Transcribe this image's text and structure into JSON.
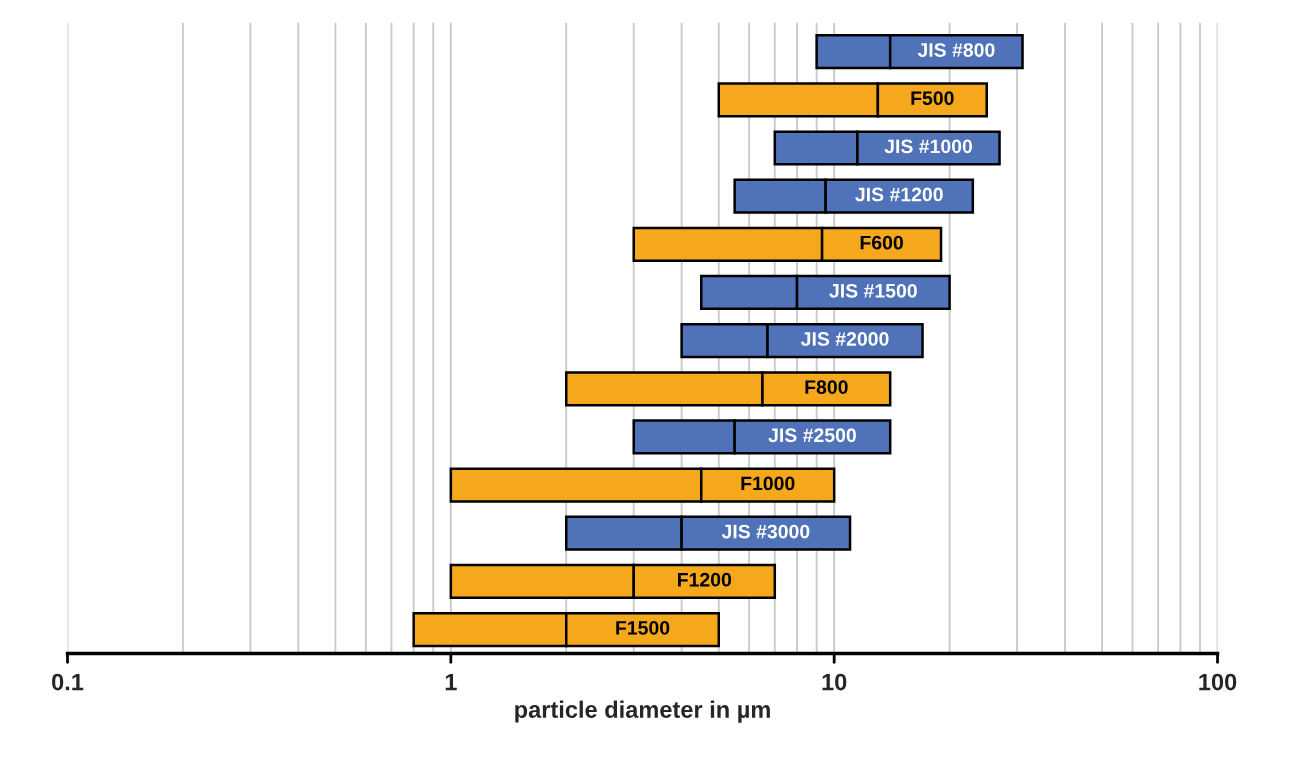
{
  "chart_data": {
    "type": "bar",
    "orientation": "horizontal",
    "log": "x",
    "xlabel": "particle diameter in µm",
    "categories": [
      "JIS #800",
      "F500",
      "JIS #1000",
      "JIS #1200",
      "F600",
      "JIS #1500",
      "JIS #2000",
      "F800",
      "JIS #2500",
      "F1000",
      "JIS #3000",
      "F1200",
      "F1500"
    ],
    "series": [
      {
        "colors": [
          "#4f72b8",
          "#f5a81c",
          "#4f72b8",
          "#4f72b8",
          "#f5a81c",
          "#4f72b8",
          "#4f72b8",
          "#f5a81c",
          "#4f72b8",
          "#f5a81c",
          "#4f72b8",
          "#f5a81c",
          "#f5a81c"
        ],
        "base": [
          9,
          5,
          7,
          5.5,
          3,
          4.5,
          4,
          2,
          3,
          1,
          2,
          1,
          0.8
        ],
        "values": [
          5,
          8,
          4.5,
          4,
          6.3,
          3.5,
          2.7,
          4.5,
          2.5,
          3.5,
          2,
          2,
          1.2
        ]
      },
      {
        "colors": [
          "#4f72b8",
          "#f5a81c",
          "#4f72b8",
          "#4f72b8",
          "#f5a81c",
          "#4f72b8",
          "#4f72b8",
          "#f5a81c",
          "#4f72b8",
          "#f5a81c",
          "#4f72b8",
          "#f5a81c",
          "#f5a81c"
        ],
        "base": [
          14,
          13,
          11.5,
          9.5,
          9.3,
          8,
          6.7,
          6.5,
          5.5,
          4.5,
          4,
          3,
          2
        ],
        "values": [
          17,
          12,
          15.5,
          13.5,
          9.7,
          12,
          10.3,
          7.5,
          8.5,
          5.5,
          7,
          4,
          3
        ]
      }
    ],
    "xlim": [
      0.1,
      100
    ],
    "xticks": [
      0.1,
      {
        "value": 0.2,
        "label": null
      },
      {
        "value": 0.3,
        "label": null
      },
      {
        "value": 0.4,
        "label": null
      },
      {
        "value": 0.5,
        "label": null
      },
      {
        "value": 0.6,
        "label": null
      },
      {
        "value": 0.7,
        "label": null
      },
      {
        "value": 0.8,
        "label": null
      },
      {
        "value": 0.9,
        "label": null
      },
      1,
      {
        "value": 2,
        "label": null
      },
      {
        "value": 3,
        "label": null
      },
      {
        "value": 4,
        "label": null
      },
      {
        "value": 5,
        "label": null
      },
      {
        "value": 6,
        "label": null
      },
      {
        "value": 7,
        "label": null
      },
      {
        "value": 8,
        "label": null
      },
      {
        "value": 9,
        "label": null
      },
      10,
      {
        "value": 20,
        "label": null
      },
      {
        "value": 30,
        "label": null
      },
      {
        "value": 40,
        "label": null
      },
      {
        "value": 50,
        "label": null
      },
      {
        "value": 60,
        "label": null
      },
      {
        "value": 70,
        "label": null
      },
      {
        "value": 80,
        "label": null
      },
      {
        "value": 90,
        "label": null
      },
      100
    ],
    "grid": "x",
    "tick_labels": "x"
  }
}
